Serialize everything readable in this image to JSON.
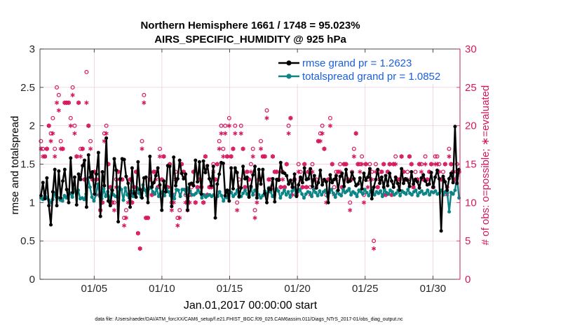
{
  "chart_data": {
    "type": "line",
    "title_line1": "Northern Hemisphere 1661 / 1748 = 95.023%",
    "title_line2": "AIRS_SPECIFIC_HUMIDITY @ 925 hPa",
    "xlabel": "Jan.01,2017 00:00:00 start",
    "ylabel_left": "rmse and totalspread",
    "ylabel_right": "# of obs: o=possible; ∗=evaluated",
    "footer": "data file: /Users/raeder/DAI/ATM_forcXX/CAM6_setup/f.e21.FHIST_BGC.f09_025.CAM6assim.011/Diags_NTrS_2017-01/obs_diag_output.nc",
    "xlim": [
      1,
      32
    ],
    "ylim_left": [
      0,
      3
    ],
    "ylim_right": [
      0,
      30
    ],
    "x_tick_values": [
      5,
      10,
      15,
      20,
      25,
      30
    ],
    "x_tick_labels": [
      "01/05",
      "01/10",
      "01/15",
      "01/20",
      "01/25",
      "01/30"
    ],
    "y_left_ticks": [
      "0",
      "0.5",
      "1",
      "1.5",
      "2",
      "2.5",
      "3"
    ],
    "y_right_ticks": [
      "0",
      "5",
      "10",
      "15",
      "20",
      "25",
      "30"
    ],
    "colors": {
      "rmse": "#000000",
      "spread": "#0b8585",
      "obs": "#d6175e",
      "legend_text": "#1a5ee0",
      "grid": "#e9c9d8"
    },
    "series": [
      {
        "name": "rmse grand pr = 1.2623",
        "values": [
          1.09,
          1.26,
          1.05,
          1.32,
          0.96,
          0.71,
          1.14,
          1.43,
          0.96,
          1.41,
          1.06,
          1.28,
          1.43,
          1.17,
          1.0,
          1.58,
          1.13,
          1.33,
          0.97,
          1.37,
          1.3,
          1.48,
          1.55,
          0.94,
          1.62,
          1.33,
          1.4,
          1.11,
          1.37,
          1.65,
          0.82,
          1.4,
          1.22,
          1.84,
          1.02,
          0.96,
          1.16,
          1.57,
          1.42,
          0.75,
          1.31,
          1.57,
          1.56,
          1.34,
          1.25,
          0.94,
          1.45,
          1.12,
          1.07,
          1.53,
          1.17,
          1.06,
          1.32,
          1.33,
          1.0,
          1.6,
          1.2,
          1.26,
          1.35,
          1.45,
          1.23,
          0.9,
          1.28,
          1.14,
          1.48,
          1.47,
          0.95,
          1.59,
          1.22,
          1.31,
          1.55,
          1.38,
          1.31,
          1.37,
          0.9,
          1.24,
          1.25,
          1.22,
          1.55,
          1.27,
          1.53,
          1.11,
          1.54,
          1.39,
          1.48,
          1.31,
          1.22,
          1.47,
          0.8,
          1.24,
          1.37,
          1.52,
          1.51,
          1.09,
          1.16,
          1.02,
          1.45,
          1.18,
          1.45,
          1.39,
          1.08,
          1.19,
          1.47,
          1.31,
          1.33,
          1.07,
          1.21,
          1.36,
          1.47,
          1.06,
          1.43,
          1.24,
          1.43,
          1.12,
          1.0,
          1.18,
          1.17,
          1.31,
          1.01,
          1.3,
          1.29,
          1.52,
          1.39,
          1.38,
          1.35,
          1.24,
          1.29,
          1.2,
          1.37,
          1.08,
          1.23,
          1.33,
          1.26,
          1.45,
          1.3,
          1.31,
          1.44,
          1.21,
          1.35,
          1.19,
          1.26,
          1.42,
          1.23,
          1.3,
          1.27,
          1.0,
          1.36,
          1.26,
          1.3,
          1.35,
          1.16,
          1.34,
          1.38,
          1.21,
          1.43,
          1.27,
          1.28,
          1.39,
          1.31,
          1.22,
          1.24,
          1.32,
          1.18,
          1.38,
          1.29,
          1.33,
          1.44,
          1.05,
          1.2,
          1.3,
          1.43,
          1.25,
          1.33,
          1.2,
          1.35,
          1.22,
          1.38,
          1.28,
          1.2,
          1.33,
          1.25,
          1.16,
          1.44,
          1.25,
          1.31,
          1.29,
          1.21,
          1.4,
          1.24,
          1.3,
          1.27,
          1.19,
          1.32,
          1.36,
          1.28,
          1.23,
          1.24,
          1.39,
          1.2,
          1.33,
          1.42,
          1.31,
          0.63,
          1.34,
          1.27,
          1.16,
          1.31,
          1.38,
          1.26,
          1.99,
          1.25,
          1.43
        ]
      },
      {
        "name": "totalspread grand pr = 1.0852",
        "values": [
          1.06,
          1.04,
          1.12,
          1.06,
          1.03,
          1.0,
          1.04,
          1.12,
          1.07,
          1.06,
          1.03,
          1.02,
          1.09,
          1.06,
          1.13,
          1.12,
          1.07,
          1.17,
          1.14,
          1.16,
          1.05,
          1.06,
          1.04,
          1.11,
          1.32,
          1.2,
          1.07,
          1.02,
          1.1,
          1.24,
          1.08,
          1.05,
          1.18,
          1.08,
          1.14,
          1.03,
          1.17,
          1.1,
          1.08,
          1.07,
          1.2,
          1.17,
          1.03,
          1.19,
          1.1,
          1.06,
          1.15,
          1.08,
          1.14,
          1.19,
          1.12,
          1.07,
          1.23,
          1.16,
          1.09,
          1.18,
          1.2,
          1.14,
          1.11,
          1.18,
          1.08,
          1.12,
          1.14,
          1.09,
          1.18,
          1.14,
          1.09,
          1.1,
          1.05,
          1.17,
          1.16,
          1.08,
          1.17,
          1.17,
          1.11,
          1.19,
          1.15,
          1.1,
          1.1,
          1.12,
          1.16,
          1.13,
          1.06,
          1.1,
          1.07,
          1.09,
          1.1,
          1.08,
          1.1,
          1.05,
          1.08,
          1.14,
          1.09,
          1.02,
          1.07,
          1.06,
          1.15,
          1.13,
          1.08,
          1.11,
          1.16,
          1.07,
          1.08,
          1.12,
          1.16,
          1.11,
          1.09,
          1.19,
          1.1,
          1.16,
          1.14,
          1.1,
          1.06,
          1.09,
          1.15,
          1.1,
          1.19,
          1.14,
          1.08,
          1.1,
          1.18,
          1.15,
          1.06,
          1.12,
          1.16,
          1.1,
          1.14,
          1.07,
          1.15,
          1.19,
          1.1,
          1.14,
          1.17,
          1.11,
          1.06,
          1.11,
          1.14,
          1.13,
          1.08,
          1.17,
          1.13,
          1.09,
          1.15,
          1.1,
          1.14,
          1.16,
          1.08,
          1.13,
          1.17,
          1.12,
          1.07,
          1.15,
          1.11,
          1.09,
          1.17,
          1.13,
          1.15,
          1.18,
          1.1,
          1.14,
          1.12,
          1.08,
          1.16,
          1.14,
          1.11,
          1.17,
          1.13,
          1.09,
          1.15,
          1.16,
          1.1,
          1.14,
          1.12,
          1.15,
          1.08,
          1.17,
          1.13,
          1.11,
          1.16,
          1.14,
          1.1,
          1.12,
          1.16,
          1.09,
          1.15,
          1.13,
          1.11,
          1.17,
          1.12,
          1.1,
          1.14,
          1.16,
          1.09,
          1.13,
          1.15,
          1.11,
          1.12,
          1.16,
          1.1,
          1.14,
          1.13,
          1.15,
          1.11,
          1.12,
          1.16,
          1.1,
          1.14,
          1.13,
          0.88,
          1.13,
          1.11,
          1.16,
          1.34,
          1.06
        ]
      }
    ],
    "obs_possible": [
      18,
      17,
      16,
      17,
      20,
      19,
      21,
      17,
      25,
      24,
      18,
      17,
      23,
      23,
      23,
      21,
      25,
      20,
      16,
      23,
      17,
      17,
      13,
      27,
      20,
      18,
      13,
      14,
      13,
      12,
      9,
      10,
      19,
      20,
      15,
      12,
      10,
      10,
      13,
      14,
      13,
      13,
      8,
      9,
      11,
      13,
      10,
      12,
      14,
      6,
      4,
      18,
      24,
      8,
      8,
      13,
      11,
      14,
      14,
      12,
      17,
      13,
      16,
      12,
      12,
      15,
      10,
      11,
      14,
      8,
      9,
      15,
      14,
      11,
      10,
      11,
      12,
      14,
      10,
      12,
      13,
      12,
      10,
      16,
      11,
      12,
      12,
      15,
      13,
      15,
      18,
      20,
      17,
      20,
      16,
      21,
      16,
      17,
      20,
      10,
      13,
      20,
      17,
      12,
      14,
      13,
      15,
      17,
      9,
      11,
      13,
      18,
      16,
      16,
      22,
      13,
      13,
      16,
      14,
      14,
      13,
      12,
      14,
      12,
      15,
      20,
      21,
      12,
      13,
      11,
      15,
      14,
      12,
      15,
      12,
      14,
      12,
      15,
      13,
      13,
      18,
      19,
      20,
      17,
      11,
      13,
      21,
      15,
      12,
      14,
      14,
      15,
      12,
      15,
      15,
      13,
      10,
      14,
      17,
      19,
      15,
      15,
      16,
      11,
      15,
      13,
      15,
      14,
      5,
      15,
      12,
      14,
      14,
      15,
      11,
      14,
      15,
      11,
      15,
      16,
      13,
      13,
      16,
      14,
      13,
      14,
      16,
      15,
      12,
      14,
      13,
      15,
      15,
      13,
      16,
      13,
      14,
      15,
      12,
      16,
      16,
      15,
      13,
      14,
      15,
      12,
      17,
      15,
      14,
      13,
      15,
      14
    ],
    "obs_evaluated": [
      17,
      16,
      16,
      17,
      20,
      18,
      19,
      16,
      23,
      22,
      17,
      17,
      23,
      23,
      23,
      20,
      24,
      19,
      16,
      23,
      16,
      17,
      13,
      23,
      20,
      17,
      13,
      14,
      13,
      11,
      9,
      10,
      18,
      19,
      15,
      12,
      10,
      9,
      12,
      14,
      13,
      13,
      7,
      8,
      10,
      13,
      10,
      12,
      14,
      6,
      4,
      17,
      23,
      8,
      8,
      13,
      11,
      14,
      13,
      12,
      16,
      13,
      16,
      12,
      12,
      15,
      9,
      10,
      13,
      7,
      8,
      15,
      14,
      10,
      9,
      10,
      11,
      14,
      10,
      12,
      13,
      12,
      10,
      16,
      11,
      12,
      12,
      14,
      13,
      15,
      17,
      19,
      16,
      19,
      16,
      20,
      16,
      17,
      19,
      9,
      12,
      19,
      17,
      12,
      14,
      13,
      14,
      16,
      8,
      10,
      13,
      17,
      16,
      16,
      21,
      13,
      12,
      16,
      14,
      14,
      13,
      12,
      13,
      12,
      15,
      19,
      21,
      11,
      13,
      11,
      14,
      13,
      12,
      15,
      12,
      14,
      11,
      14,
      13,
      12,
      18,
      18,
      19,
      17,
      10,
      13,
      20,
      15,
      11,
      13,
      14,
      14,
      12,
      15,
      15,
      13,
      9,
      13,
      16,
      19,
      15,
      14,
      15,
      10,
      15,
      12,
      14,
      13,
      4,
      14,
      12,
      13,
      14,
      15,
      11,
      14,
      15,
      11,
      15,
      15,
      13,
      13,
      16,
      14,
      13,
      13,
      16,
      15,
      12,
      13,
      13,
      15,
      14,
      13,
      15,
      13,
      14,
      15,
      12,
      15,
      15,
      14,
      13,
      13,
      15,
      11,
      16,
      15,
      14,
      13,
      14,
      14
    ]
  }
}
